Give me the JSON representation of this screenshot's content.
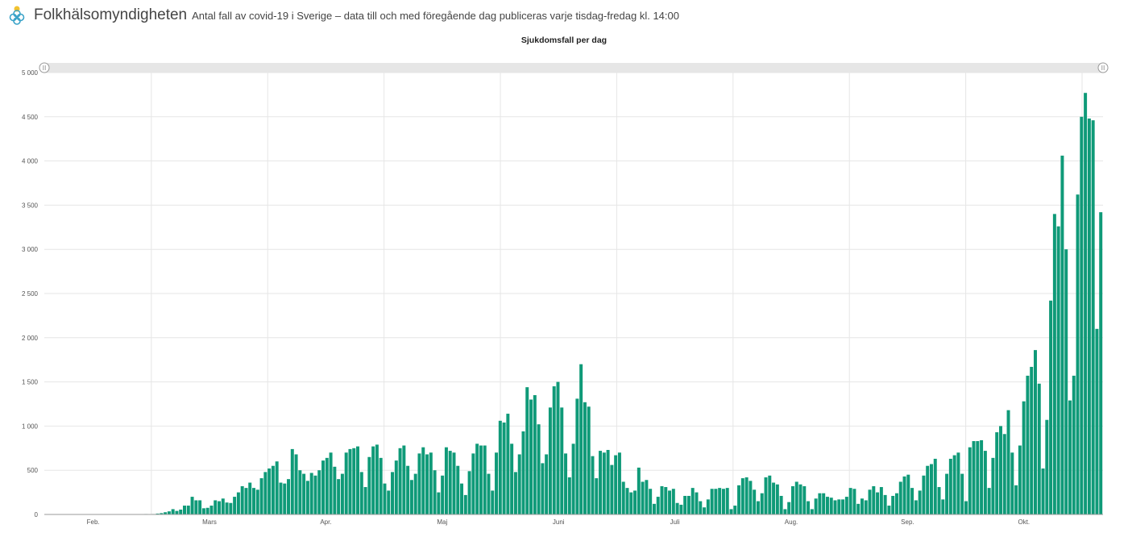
{
  "header": {
    "brand": "Folkhälsomyndigheten",
    "subtitle": "Antal fall av covid-19 i Sverige – data till och med föregående dag publiceras varje tisdag-fredag kl. 14:00",
    "logo_icon": "flower-logo-icon"
  },
  "colors": {
    "bar": "#0f9a78",
    "grid": "#e6e6e6",
    "scrollbar": "#e6e6e6"
  },
  "chart_data": {
    "type": "bar",
    "title": "Sjukdomsfall per dag",
    "xlabel": "",
    "ylabel": "",
    "ylim": [
      0,
      5000
    ],
    "y_ticks": [
      "0",
      "500",
      "1 000",
      "1 500",
      "2 000",
      "2 500",
      "3 000",
      "3 500",
      "4 000",
      "4 500",
      "5 000"
    ],
    "x_tick_labels": [
      "Feb.",
      "Mars",
      "Apr.",
      "Maj",
      "Juni",
      "Juli",
      "Aug.",
      "Sep.",
      "Okt."
    ],
    "grid": true,
    "legend": "none",
    "series": [
      {
        "values": [
          1,
          0,
          0,
          1,
          0,
          0,
          0,
          0,
          0,
          0,
          0,
          0,
          0,
          0,
          0,
          0,
          0,
          0,
          0,
          0,
          0,
          0,
          1,
          0,
          0,
          0,
          5,
          3,
          5,
          10,
          15,
          25,
          35,
          60,
          40,
          55,
          100,
          100,
          200,
          160,
          160,
          70,
          75,
          100,
          160,
          150,
          180,
          135,
          130,
          200,
          250,
          320,
          300,
          360,
          300,
          280,
          410,
          480,
          520,
          550,
          600,
          360,
          350,
          400,
          740,
          680,
          500,
          460,
          380,
          470,
          440,
          500,
          610,
          640,
          700,
          540,
          400,
          460,
          700,
          740,
          750,
          770,
          480,
          310,
          650,
          770,
          790,
          640,
          350,
          270,
          480,
          610,
          750,
          780,
          550,
          390,
          460,
          690,
          760,
          680,
          700,
          500,
          250,
          440,
          760,
          720,
          700,
          550,
          350,
          220,
          490,
          690,
          800,
          780,
          780,
          460,
          270,
          700,
          1060,
          1040,
          1140,
          800,
          480,
          680,
          940,
          1440,
          1300,
          1350,
          1020,
          580,
          680,
          1210,
          1450,
          1500,
          1210,
          690,
          420,
          800,
          1310,
          1700,
          1270,
          1220,
          660,
          410,
          720,
          700,
          730,
          560,
          670,
          700,
          370,
          300,
          250,
          270,
          530,
          370,
          390,
          290,
          120,
          200,
          320,
          310,
          270,
          290,
          130,
          110,
          210,
          210,
          300,
          250,
          150,
          80,
          170,
          290,
          290,
          300,
          290,
          300,
          60,
          100,
          330,
          410,
          420,
          380,
          280,
          150,
          240,
          420,
          440,
          360,
          340,
          210,
          60,
          140,
          320,
          370,
          340,
          320,
          150,
          60,
          180,
          240,
          240,
          200,
          190,
          160,
          170,
          170,
          200,
          300,
          290,
          120,
          180,
          160,
          280,
          320,
          250,
          310,
          220,
          100,
          210,
          240,
          370,
          430,
          450,
          300,
          160,
          270,
          440,
          550,
          570,
          630,
          310,
          170,
          460,
          630,
          670,
          700,
          460,
          150,
          760,
          830,
          830,
          840,
          720,
          300,
          640,
          930,
          1000,
          910,
          1180,
          700,
          330,
          780,
          1280,
          1570,
          1670,
          1860,
          1480,
          520,
          1070,
          2420,
          3400,
          3260,
          4060,
          3000,
          1290,
          1570,
          3620,
          4500,
          4770,
          4480,
          4460,
          2100,
          3420
        ]
      }
    ]
  }
}
